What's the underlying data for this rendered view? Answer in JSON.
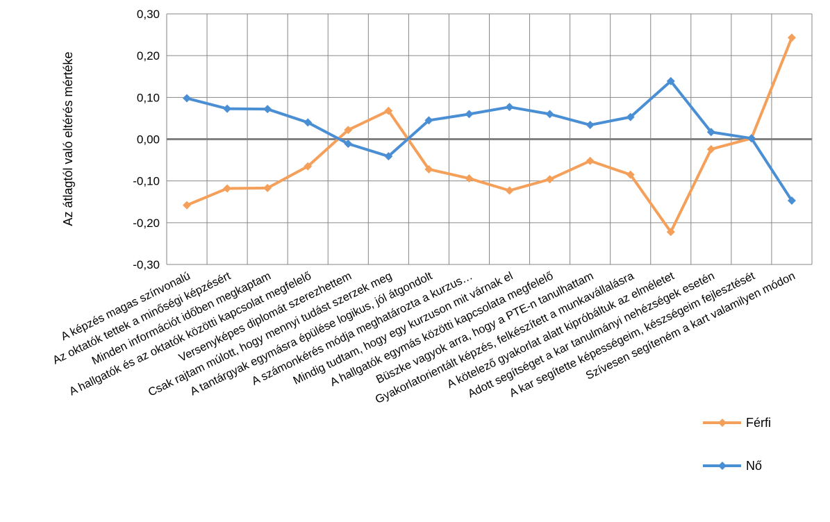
{
  "chart_data": {
    "type": "line",
    "title": "",
    "xlabel": "",
    "ylabel": "Az átlagtól való eltérés mértéke",
    "ylim": [
      -0.3,
      0.3
    ],
    "yticks": [
      "0,30",
      "0,20",
      "0,10",
      "0,00",
      "-0,10",
      "-0,20",
      "-0,30"
    ],
    "grid": true,
    "legend": "right",
    "categories": [
      "A képzés magas színvonalú",
      "Az oktatók tettek a minőségi képzésért",
      "Minden információt időben megkaptam",
      "A hallgatók és az oktatók közötti kapcsolat megfelelő",
      "Versenyképes diplomát szerezhettem",
      "Csak rajtam múlott, hogy mennyi tudást szerzek meg",
      "A tantárgyak egymásra épülése logikus, jól átgondolt",
      "A számonkérés módja meghatározta a kurzus…",
      "Mindig tudtam, hogy egy kurzuson mit várnak el",
      "A hallgatók egymás közötti kapcsolata megfelelő",
      "Büszke vagyok arra, hogy a PTE-n tanulhattam",
      "Gyakorlatorientált képzés, felkészített a munkavállalásra",
      "A kötelező gyakorlat alatt kipróbáltuk az elméletet",
      "Adott segítséget a kar tanulmányi nehézségek esetén",
      "A kar segítette képességeim, készségeim fejlesztését",
      "Szívesen segíteném a kart valamilyen módon"
    ],
    "series": [
      {
        "name": "Férfi",
        "color": "#F4A05A",
        "values": [
          -0.158,
          -0.118,
          -0.117,
          -0.065,
          0.022,
          0.068,
          -0.072,
          -0.094,
          -0.123,
          -0.096,
          -0.052,
          -0.085,
          -0.222,
          -0.024,
          0.002,
          0.243
        ]
      },
      {
        "name": "Nő",
        "color": "#4A8ED4",
        "values": [
          0.098,
          0.073,
          0.072,
          0.04,
          -0.011,
          -0.041,
          0.045,
          0.06,
          0.077,
          0.06,
          0.034,
          0.053,
          0.139,
          0.017,
          0.002,
          -0.147
        ]
      }
    ]
  }
}
